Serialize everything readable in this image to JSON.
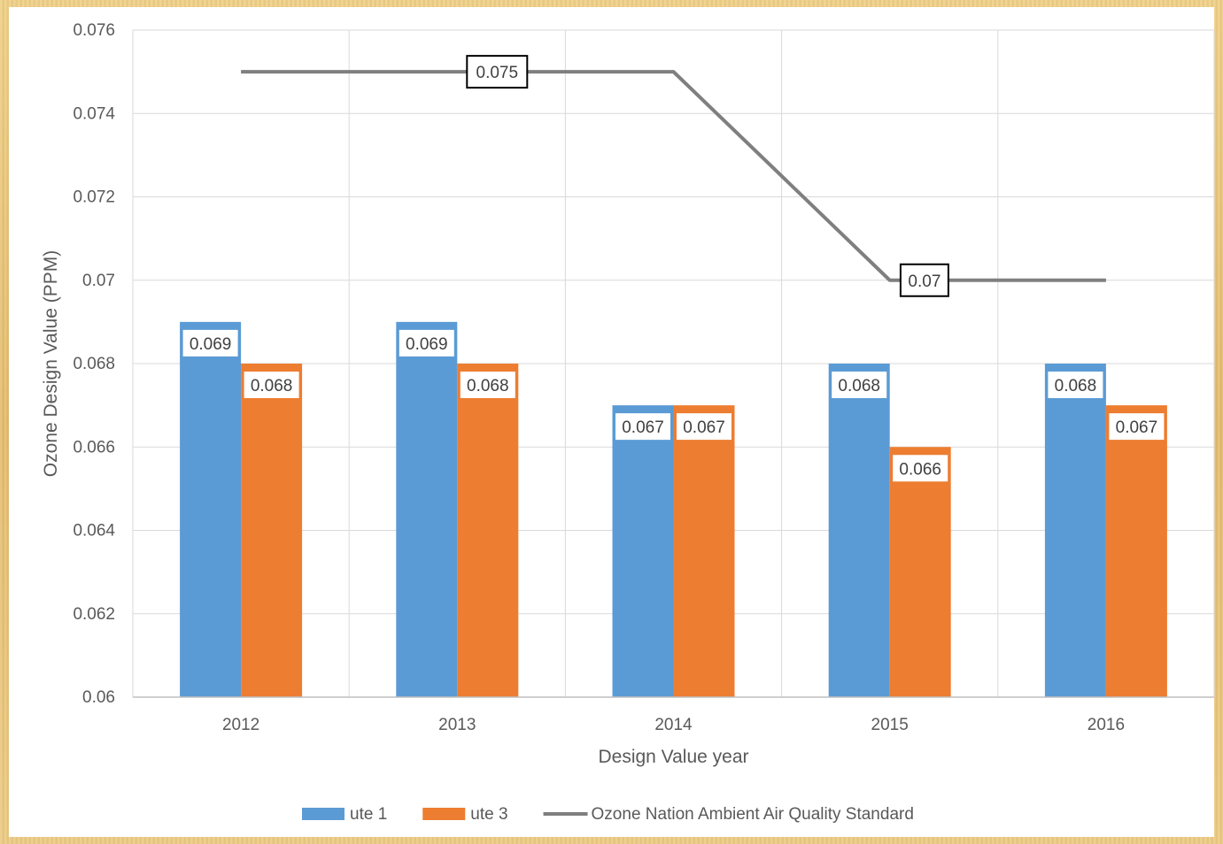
{
  "chart_data": {
    "type": "bar",
    "title": "",
    "xlabel": "Design Value year",
    "ylabel": "Ozone Design Value (PPM)",
    "ylim": [
      0.06,
      0.076
    ],
    "yticks": [
      "0.06",
      "0.062",
      "0.064",
      "0.066",
      "0.068",
      "0.07",
      "0.072",
      "0.074",
      "0.076"
    ],
    "categories": [
      "2012",
      "2013",
      "2014",
      "2015",
      "2016"
    ],
    "grid": true,
    "legend_position": "bottom",
    "series": [
      {
        "name": "ute 1",
        "kind": "bar",
        "color": "#5b9bd5",
        "values": [
          0.069,
          0.069,
          0.067,
          0.068,
          0.068
        ],
        "labels": [
          "0.069",
          "0.069",
          "0.067",
          "0.068",
          "0.068"
        ]
      },
      {
        "name": "ute 3",
        "kind": "bar",
        "color": "#ed7d31",
        "values": [
          0.068,
          0.068,
          0.067,
          0.066,
          0.067
        ],
        "labels": [
          "0.068",
          "0.068",
          "0.067",
          "0.066",
          "0.067"
        ]
      },
      {
        "name": "Ozone Nation Ambient Air Quality Standard",
        "kind": "line",
        "color": "#7f7f7f",
        "values": [
          0.075,
          0.075,
          0.075,
          0.07,
          0.07
        ],
        "labels": [
          "",
          "0.075",
          "",
          "",
          "0.07"
        ]
      }
    ]
  }
}
